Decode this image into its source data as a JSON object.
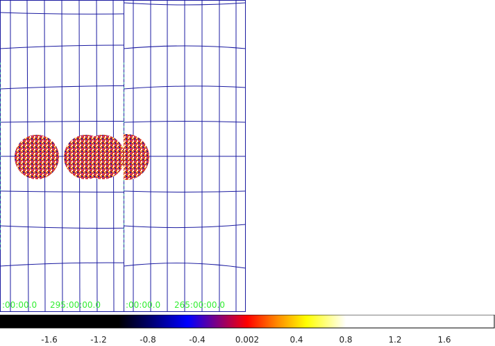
{
  "panels": [
    {
      "ra_label": ":00:00.0",
      "ra_label2": "295:00:00.0"
    },
    {
      "ra_label": ":00:00.0",
      "ra_label2": "265:00:00.0"
    }
  ],
  "colorbar": {
    "ticks": [
      "-1.6",
      "-1.2",
      "-0.8",
      "-0.4",
      "0.002",
      "0.4",
      "0.8",
      "1.2",
      "1.6"
    ]
  },
  "colors": {
    "grid": "#1a1aa0",
    "label": "#33ee33"
  }
}
